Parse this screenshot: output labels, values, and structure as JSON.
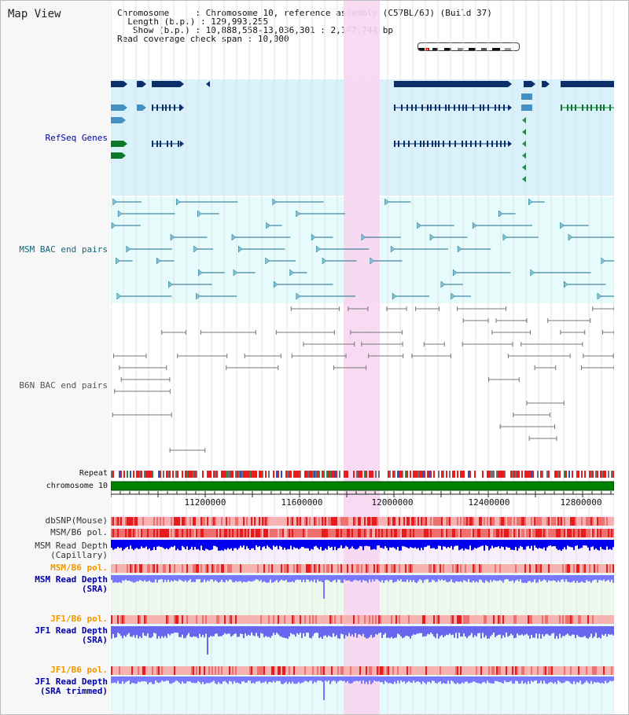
{
  "page": {
    "title": "Map View"
  },
  "info": {
    "chromosome_key": "Chromosome",
    "chromosome_value": "Chromosome 10, reference assembly (C57BL/6J) (Build 37)",
    "length_key": "Length (b.p.)",
    "length_value": "129,993,255",
    "show_key": "Show (b.p.)",
    "show_value": "10,888,558-13,036,301 : 2,147,744 bp",
    "coverage_key": "Read coverage check span",
    "coverage_value": "10,000"
  },
  "tracks": {
    "refseq": "RefSeq Genes",
    "msm_bac": "MSM BAC end pairs",
    "b6n_bac": "B6N BAC end pairs",
    "repeat": "Repeat",
    "chromosome": "chromosome 10",
    "dbsnp": "dbSNP(Mouse)",
    "msm_b6_pol_1": "MSM/B6 pol.",
    "msm_read_depth_cap_1": "MSM Read Depth",
    "msm_read_depth_cap_2": "(Capillary)",
    "msm_b6_pol_2": "MSM/B6 pol.",
    "msm_read_depth_sra_1": "MSM Read Depth",
    "msm_read_depth_sra_2": "(SRA)",
    "jf1_b6_pol_1": "JF1/B6 pol.",
    "jf1_read_depth_sra_1": "JF1 Read Depth",
    "jf1_read_depth_sra_2": "(SRA)",
    "jf1_b6_pol_2": "JF1/B6 pol.",
    "jf1_read_depth_trim_1": "JF1 Read Depth",
    "jf1_read_depth_trim_2": "(SRA trimmed)"
  },
  "axis": {
    "ticks": [
      "11200000",
      "11600000",
      "12000000",
      "12400000",
      "12800000"
    ]
  },
  "colors": {
    "refseq_bg": "#d9f1fa",
    "refseq_gene": "#0a2f6b",
    "msm_bg": "#e6fbfb",
    "msm_feature": "#1a6a87",
    "b6n_feature": "#777777",
    "highlight": "#f7d6f1",
    "chromosome": "#008000",
    "pol_light": "#f7b2b2",
    "pol_dark": "#e81c1c",
    "depth_dark": "#0000ee",
    "depth_light": "#7777ff",
    "label_refseq": "#0000aa",
    "label_msm": "#116677",
    "label_orange": "#ee9900",
    "label_blue": "#0000aa"
  }
}
